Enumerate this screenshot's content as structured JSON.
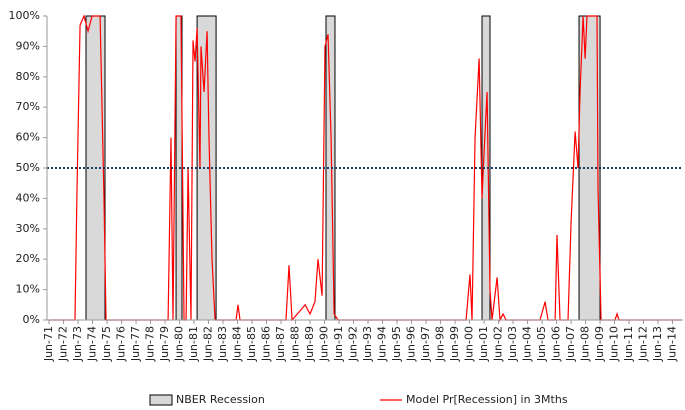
{
  "chart_data": {
    "type": "line",
    "xlim": [
      1971.36,
      2015.22
    ],
    "ylim": [
      0,
      100
    ],
    "yticks": [
      {
        "value": 0,
        "label": "0%"
      },
      {
        "value": 10,
        "label": "10%"
      },
      {
        "value": 20,
        "label": "20%"
      },
      {
        "value": 30,
        "label": "30%"
      },
      {
        "value": 40,
        "label": "40%"
      },
      {
        "value": 50,
        "label": "50%"
      },
      {
        "value": 60,
        "label": "60%"
      },
      {
        "value": 70,
        "label": "70%"
      },
      {
        "value": 80,
        "label": "80%"
      },
      {
        "value": 90,
        "label": "90%"
      },
      {
        "value": 100,
        "label": "100%"
      }
    ],
    "xticks": [
      {
        "value": 1971.5,
        "label": "Jun-71"
      },
      {
        "value": 1972.5,
        "label": "Jun-72"
      },
      {
        "value": 1973.5,
        "label": "Jun-73"
      },
      {
        "value": 1974.5,
        "label": "Jun-74"
      },
      {
        "value": 1975.5,
        "label": "Jun-75"
      },
      {
        "value": 1976.5,
        "label": "Jun-76"
      },
      {
        "value": 1977.5,
        "label": "Jun-77"
      },
      {
        "value": 1978.5,
        "label": "Jun-78"
      },
      {
        "value": 1979.5,
        "label": "Jun-79"
      },
      {
        "value": 1980.5,
        "label": "Jun-80"
      },
      {
        "value": 1981.5,
        "label": "Jun-81"
      },
      {
        "value": 1982.5,
        "label": "Jun-82"
      },
      {
        "value": 1983.5,
        "label": "Jun-83"
      },
      {
        "value": 1984.5,
        "label": "Jun-84"
      },
      {
        "value": 1985.5,
        "label": "Jun-85"
      },
      {
        "value": 1986.5,
        "label": "Jun-86"
      },
      {
        "value": 1987.5,
        "label": "Jun-87"
      },
      {
        "value": 1988.5,
        "label": "Jun-88"
      },
      {
        "value": 1989.5,
        "label": "Jun-89"
      },
      {
        "value": 1990.5,
        "label": "Jun-90"
      },
      {
        "value": 1991.5,
        "label": "Jun-91"
      },
      {
        "value": 1992.5,
        "label": "Jun-92"
      },
      {
        "value": 1993.5,
        "label": "Jun-93"
      },
      {
        "value": 1994.5,
        "label": "Jun-94"
      },
      {
        "value": 1995.5,
        "label": "Jun-95"
      },
      {
        "value": 1996.5,
        "label": "Jun-96"
      },
      {
        "value": 1997.5,
        "label": "Jun-97"
      },
      {
        "value": 1998.5,
        "label": "Jun-98"
      },
      {
        "value": 1999.5,
        "label": "Jun-99"
      },
      {
        "value": 2000.5,
        "label": "Jun-00"
      },
      {
        "value": 2001.5,
        "label": "Jun-01"
      },
      {
        "value": 2002.5,
        "label": "Jun-02"
      },
      {
        "value": 2003.5,
        "label": "Jun-03"
      },
      {
        "value": 2004.5,
        "label": "Jun-04"
      },
      {
        "value": 2005.5,
        "label": "Jun-05"
      },
      {
        "value": 2006.5,
        "label": "Jun-06"
      },
      {
        "value": 2007.5,
        "label": "Jun-07"
      },
      {
        "value": 2008.5,
        "label": "Jun-08"
      },
      {
        "value": 2009.5,
        "label": "Jun-09"
      },
      {
        "value": 2010.5,
        "label": "Jun-10"
      },
      {
        "value": 2011.5,
        "label": "Jun-11"
      },
      {
        "value": 2012.5,
        "label": "Jun-12"
      },
      {
        "value": 2013.5,
        "label": "Jun-13"
      },
      {
        "value": 2014.5,
        "label": "Jun-14"
      }
    ],
    "reference_line": 50,
    "reference_color": "#1f3864",
    "series": [
      {
        "name": "NBER Recession",
        "type": "band",
        "color": "#d9d9d9",
        "ranges": [
          [
            1974.05,
            1975.36
          ],
          [
            1980.26,
            1980.67
          ],
          [
            1981.71,
            1983.02
          ],
          [
            1990.6,
            1991.22
          ],
          [
            2001.36,
            2001.91
          ],
          [
            2008.05,
            2009.5
          ]
        ]
      },
      {
        "name": "Model Pr[Recession] in 3Mths",
        "type": "line",
        "color": "#ff0000",
        "x": [
          1971.5,
          1973.29,
          1973.43,
          1973.64,
          1973.91,
          1974.19,
          1974.47,
          1975.02,
          1975.29,
          1975.43,
          1979.71,
          1979.91,
          1980.05,
          1980.26,
          1980.6,
          1980.81,
          1980.95,
          1981.09,
          1981.29,
          1981.43,
          1981.57,
          1981.71,
          1981.91,
          1981.98,
          1982.19,
          1982.4,
          1982.53,
          1982.74,
          1982.95,
          1984.4,
          1984.53,
          1984.67,
          1987.84,
          1988.05,
          1988.26,
          1988.81,
          1989.16,
          1989.5,
          1989.84,
          1990.05,
          1990.33,
          1990.53,
          1990.74,
          1990.95,
          1991.16,
          1991.43,
          2000.26,
          2000.53,
          2000.67,
          2000.88,
          2001.16,
          2001.36,
          2001.5,
          2001.71,
          2001.91,
          2002.05,
          2002.4,
          2002.6,
          2002.81,
          2003.02,
          2005.36,
          2005.71,
          2005.91,
          2006.4,
          2006.53,
          2006.74,
          2007.29,
          2007.5,
          2007.78,
          2007.98,
          2008.12,
          2008.33,
          2008.47,
          2008.6,
          2008.67,
          2008.88,
          2009.29,
          2009.36,
          2009.57,
          2010.53,
          2010.67,
          2010.81,
          2015.1
        ],
        "values": [
          0,
          0,
          43,
          97,
          100,
          95,
          100,
          100,
          40,
          0,
          0,
          60,
          0,
          100,
          100,
          0,
          0,
          50,
          0,
          92,
          85,
          96,
          50,
          90,
          75,
          95,
          60,
          20,
          0,
          0,
          5,
          0,
          0,
          18,
          0,
          3,
          5,
          2,
          6,
          20,
          8,
          90,
          94,
          60,
          2,
          0,
          0,
          15,
          0,
          60,
          86,
          40,
          55,
          75,
          10,
          0,
          14,
          0,
          2,
          0,
          0,
          6,
          0,
          0,
          28,
          0,
          0,
          32,
          62,
          50,
          75,
          100,
          86,
          100,
          100,
          100,
          100,
          43,
          0,
          0,
          2,
          0,
          0
        ]
      }
    ]
  }
}
